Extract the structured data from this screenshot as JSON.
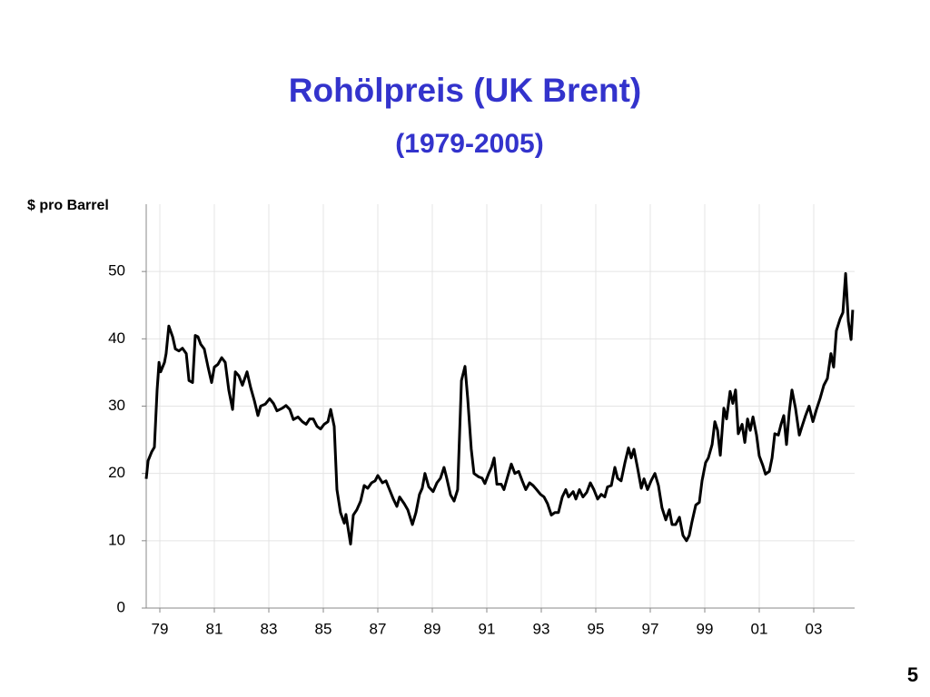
{
  "chart_data": {
    "type": "line",
    "title": "Rohölpreis (UK Brent)",
    "subtitle": "(1979-2005)",
    "y_label": "$ pro Barrel",
    "color": "#000000",
    "grid": true,
    "xlim": [
      1979,
      2005
    ],
    "xticks": [
      {
        "value": 1979.5,
        "label": "79"
      },
      {
        "value": 1981.5,
        "label": "81"
      },
      {
        "value": 1983.5,
        "label": "83"
      },
      {
        "value": 1985.5,
        "label": "85"
      },
      {
        "value": 1987.5,
        "label": "87"
      },
      {
        "value": 1989.5,
        "label": "89"
      },
      {
        "value": 1991.5,
        "label": "91"
      },
      {
        "value": 1993.5,
        "label": "93"
      },
      {
        "value": 1995.5,
        "label": "95"
      },
      {
        "value": 1997.5,
        "label": "97"
      },
      {
        "value": 1999.5,
        "label": "99"
      },
      {
        "value": 2001.5,
        "label": "01"
      },
      {
        "value": 2003.5,
        "label": "03"
      }
    ],
    "ylim": [
      0,
      60
    ],
    "yticks": [
      0,
      10,
      20,
      30,
      40,
      50
    ],
    "x": [
      1979.0,
      1979.07,
      1979.2,
      1979.3,
      1979.4,
      1979.47,
      1979.53,
      1979.67,
      1979.73,
      1979.83,
      1979.97,
      1980.07,
      1980.2,
      1980.33,
      1980.47,
      1980.57,
      1980.7,
      1980.8,
      1980.9,
      1981.0,
      1981.13,
      1981.27,
      1981.4,
      1981.5,
      1981.63,
      1981.77,
      1981.9,
      1982.03,
      1982.17,
      1982.27,
      1982.4,
      1982.53,
      1982.7,
      1982.83,
      1982.97,
      1983.1,
      1983.2,
      1983.37,
      1983.53,
      1983.67,
      1983.8,
      1984.0,
      1984.13,
      1984.27,
      1984.4,
      1984.57,
      1984.73,
      1984.87,
      1985.0,
      1985.13,
      1985.27,
      1985.4,
      1985.53,
      1985.67,
      1985.77,
      1985.9,
      1986.0,
      1986.13,
      1986.27,
      1986.33,
      1986.5,
      1986.6,
      1986.73,
      1986.87,
      1987.0,
      1987.13,
      1987.27,
      1987.4,
      1987.5,
      1987.67,
      1987.8,
      1987.93,
      1988.07,
      1988.2,
      1988.3,
      1988.47,
      1988.6,
      1988.77,
      1988.9,
      1989.03,
      1989.13,
      1989.23,
      1989.37,
      1989.53,
      1989.67,
      1989.8,
      1989.93,
      1990.03,
      1990.17,
      1990.3,
      1990.43,
      1990.57,
      1990.7,
      1990.8,
      1990.93,
      1991.03,
      1991.2,
      1991.33,
      1991.43,
      1991.57,
      1991.67,
      1991.77,
      1991.87,
      1992.03,
      1992.13,
      1992.27,
      1992.4,
      1992.53,
      1992.67,
      1992.8,
      1992.93,
      1993.07,
      1993.2,
      1993.33,
      1993.47,
      1993.6,
      1993.73,
      1993.87,
      1994.0,
      1994.13,
      1994.27,
      1994.4,
      1994.5,
      1994.67,
      1994.77,
      1994.9,
      1995.03,
      1995.17,
      1995.3,
      1995.43,
      1995.57,
      1995.7,
      1995.83,
      1995.93,
      1996.07,
      1996.2,
      1996.3,
      1996.43,
      1996.57,
      1996.7,
      1996.8,
      1996.9,
      1997.03,
      1997.17,
      1997.27,
      1997.4,
      1997.53,
      1997.67,
      1997.8,
      1997.93,
      1998.07,
      1998.2,
      1998.3,
      1998.43,
      1998.57,
      1998.7,
      1998.83,
      1998.93,
      1999.03,
      1999.17,
      1999.3,
      1999.4,
      1999.53,
      1999.63,
      1999.77,
      1999.87,
      1999.97,
      2000.07,
      2000.2,
      2000.3,
      2000.43,
      2000.53,
      2000.63,
      2000.73,
      2000.87,
      2000.97,
      2001.07,
      2001.17,
      2001.27,
      2001.4,
      2001.5,
      2001.63,
      2001.73,
      2001.87,
      2001.97,
      2002.07,
      2002.2,
      2002.3,
      2002.4,
      2002.5,
      2002.6,
      2002.7,
      2002.83,
      2002.97,
      2003.07,
      2003.2,
      2003.33,
      2003.47,
      2003.6,
      2003.73,
      2003.87,
      2004.0,
      2004.13,
      2004.23,
      2004.33,
      2004.47,
      2004.57,
      2004.67,
      2004.77,
      2004.87,
      2004.93
    ],
    "values": [
      19.2,
      21.9,
      23.2,
      23.9,
      32.4,
      36.5,
      35.1,
      36.5,
      37.8,
      41.9,
      40.3,
      38.5,
      38.2,
      38.6,
      37.8,
      33.8,
      33.5,
      40.5,
      40.3,
      39.2,
      38.5,
      35.8,
      33.5,
      35.8,
      36.2,
      37.2,
      36.5,
      32.4,
      29.5,
      35.1,
      34.5,
      33.1,
      35.1,
      32.8,
      30.8,
      28.6,
      30.0,
      30.3,
      31.1,
      30.4,
      29.3,
      29.7,
      30.1,
      29.5,
      28.0,
      28.4,
      27.7,
      27.3,
      28.1,
      28.1,
      27.0,
      26.6,
      27.3,
      27.7,
      29.5,
      27.0,
      17.6,
      14.2,
      12.6,
      13.9,
      9.5,
      13.8,
      14.6,
      15.9,
      18.2,
      17.8,
      18.6,
      18.9,
      19.7,
      18.6,
      18.9,
      17.6,
      16.2,
      15.1,
      16.5,
      15.5,
      14.6,
      12.4,
      14.2,
      16.9,
      17.8,
      20.0,
      18.0,
      17.3,
      18.6,
      19.3,
      20.9,
      19.3,
      16.8,
      15.9,
      17.6,
      33.8,
      35.9,
      31.1,
      23.6,
      20.0,
      19.5,
      19.3,
      18.5,
      20.0,
      20.9,
      22.3,
      18.4,
      18.4,
      17.6,
      19.6,
      21.4,
      20.0,
      20.3,
      18.9,
      17.6,
      18.6,
      18.2,
      17.6,
      16.9,
      16.5,
      15.5,
      13.8,
      14.2,
      14.2,
      16.5,
      17.6,
      16.5,
      17.3,
      16.2,
      17.6,
      16.5,
      17.2,
      18.6,
      17.6,
      16.2,
      16.9,
      16.5,
      18.0,
      18.2,
      20.9,
      19.3,
      18.9,
      21.6,
      23.8,
      22.3,
      23.6,
      20.9,
      17.8,
      19.2,
      17.6,
      18.9,
      20.0,
      18.2,
      14.9,
      13.1,
      14.6,
      12.4,
      12.4,
      13.5,
      10.8,
      10.0,
      10.8,
      12.8,
      15.3,
      15.7,
      18.9,
      21.6,
      22.3,
      24.3,
      27.7,
      26.4,
      22.7,
      29.7,
      28.1,
      32.2,
      30.4,
      32.4,
      25.9,
      27.3,
      24.6,
      28.1,
      26.4,
      28.4,
      25.7,
      22.6,
      21.2,
      19.9,
      20.3,
      22.3,
      25.9,
      25.7,
      27.3,
      28.6,
      24.3,
      29.1,
      32.4,
      29.7,
      25.7,
      27.0,
      28.6,
      30.0,
      27.7,
      29.5,
      31.1,
      33.1,
      34.1,
      37.8,
      35.8,
      41.2,
      43.0,
      43.9,
      49.7,
      42.6,
      39.9,
      44.3
    ]
  },
  "page_number": "5"
}
